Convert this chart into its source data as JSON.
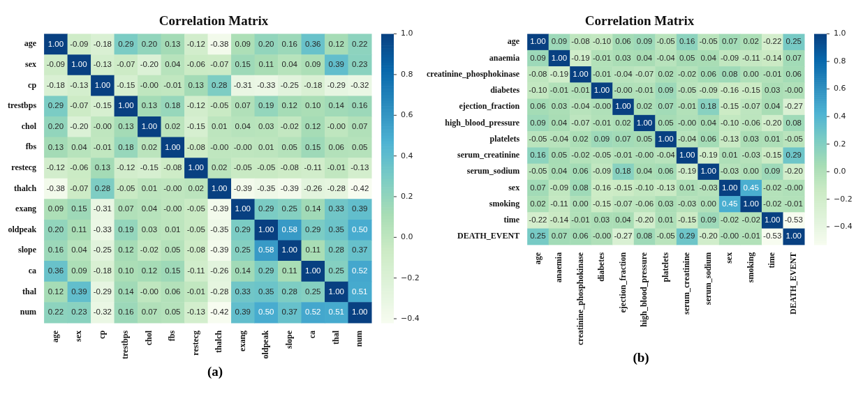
{
  "chart_data": [
    {
      "type": "heatmap",
      "title": "Correlation Matrix",
      "annotations": [
        "(a)"
      ],
      "categories": [
        "age",
        "sex",
        "cp",
        "trestbps",
        "chol",
        "fbs",
        "restecg",
        "thalch",
        "exang",
        "oldpeak",
        "slope",
        "ca",
        "thal",
        "num"
      ],
      "y_categories": [
        "age",
        "sex",
        "cp",
        "trestbps",
        "chol",
        "fbs",
        "restecg",
        "thalch",
        "exang",
        "oldpeak",
        "slope",
        "ca",
        "thal",
        "num"
      ],
      "cells": [
        [
          1.0,
          -0.09,
          -0.18,
          0.29,
          0.2,
          0.13,
          -0.12,
          -0.38,
          0.09,
          0.2,
          0.16,
          0.36,
          0.12,
          0.22
        ],
        [
          -0.09,
          1.0,
          -0.13,
          -0.07,
          -0.2,
          0.04,
          -0.06,
          -0.07,
          0.15,
          0.11,
          0.04,
          0.09,
          0.39,
          0.23
        ],
        [
          -0.18,
          -0.13,
          1.0,
          -0.15,
          0,
          -0.01,
          0.13,
          0.28,
          -0.31,
          -0.33,
          -0.25,
          -0.18,
          -0.29,
          -0.32
        ],
        [
          0.29,
          -0.07,
          -0.15,
          1.0,
          0.13,
          0.18,
          -0.12,
          -0.05,
          0.07,
          0.19,
          0.12,
          0.1,
          0.14,
          0.16
        ],
        [
          0.2,
          -0.2,
          0,
          0.13,
          1.0,
          0.02,
          -0.15,
          0.01,
          0.04,
          0.03,
          -0.02,
          0.12,
          0,
          0.07
        ],
        [
          0.13,
          0.04,
          -0.01,
          0.18,
          0.02,
          1.0,
          -0.08,
          0,
          0,
          0.01,
          0.05,
          0.15,
          0.06,
          0.05
        ],
        [
          -0.12,
          -0.06,
          0.13,
          -0.12,
          -0.15,
          -0.08,
          1.0,
          0.02,
          -0.05,
          -0.05,
          -0.08,
          -0.11,
          -0.01,
          -0.13
        ],
        [
          -0.38,
          -0.07,
          0.28,
          -0.05,
          0.01,
          0,
          0.02,
          1.0,
          -0.39,
          -0.35,
          -0.39,
          -0.26,
          -0.28,
          -0.42
        ],
        [
          0.09,
          0.15,
          -0.31,
          0.07,
          0.04,
          0,
          -0.05,
          -0.39,
          1.0,
          0.29,
          0.25,
          0.14,
          0.33,
          0.39
        ],
        [
          0.2,
          0.11,
          -0.33,
          0.19,
          0.03,
          0.01,
          -0.05,
          -0.35,
          0.29,
          1.0,
          0.58,
          0.29,
          0.35,
          0.5
        ],
        [
          0.16,
          0.04,
          -0.25,
          0.12,
          -0.02,
          0.05,
          -0.08,
          -0.39,
          0.25,
          0.58,
          1.0,
          0.11,
          0.28,
          0.37
        ],
        [
          0.36,
          0.09,
          -0.18,
          0.1,
          0.12,
          0.15,
          -0.11,
          -0.26,
          0.14,
          0.29,
          0.11,
          1.0,
          0.25,
          0.52
        ],
        [
          0.12,
          0.39,
          -0.29,
          0.14,
          0,
          0.06,
          -0.01,
          -0.28,
          0.33,
          0.35,
          0.28,
          0.25,
          1.0,
          0.51
        ],
        [
          0.22,
          0.23,
          -0.32,
          0.16,
          0.07,
          0.05,
          -0.13,
          -0.42,
          0.39,
          0.5,
          0.37,
          0.52,
          0.51,
          1.0
        ]
      ],
      "cell_labels": [
        [
          "1.00",
          "-0.09",
          "-0.18",
          "0.29",
          "0.20",
          "0.13",
          "-0.12",
          "-0.38",
          "0.09",
          "0.20",
          "0.16",
          "0.36",
          "0.12",
          "0.22"
        ],
        [
          "-0.09",
          "1.00",
          "-0.13",
          "-0.07",
          "-0.20",
          "0.04",
          "-0.06",
          "-0.07",
          "0.15",
          "0.11",
          "0.04",
          "0.09",
          "0.39",
          "0.23"
        ],
        [
          "-0.18",
          "-0.13",
          "1.00",
          "-0.15",
          "-0.00",
          "-0.01",
          "0.13",
          "0.28",
          "-0.31",
          "-0.33",
          "-0.25",
          "-0.18",
          "-0.29",
          "-0.32"
        ],
        [
          "0.29",
          "-0.07",
          "-0.15",
          "1.00",
          "0.13",
          "0.18",
          "-0.12",
          "-0.05",
          "0.07",
          "0.19",
          "0.12",
          "0.10",
          "0.14",
          "0.16"
        ],
        [
          "0.20",
          "-0.20",
          "-0.00",
          "0.13",
          "1.00",
          "0.02",
          "-0.15",
          "0.01",
          "0.04",
          "0.03",
          "-0.02",
          "0.12",
          "-0.00",
          "0.07"
        ],
        [
          "0.13",
          "0.04",
          "-0.01",
          "0.18",
          "0.02",
          "1.00",
          "-0.08",
          "-0.00",
          "-0.00",
          "0.01",
          "0.05",
          "0.15",
          "0.06",
          "0.05"
        ],
        [
          "-0.12",
          "-0.06",
          "0.13",
          "-0.12",
          "-0.15",
          "-0.08",
          "1.00",
          "0.02",
          "-0.05",
          "-0.05",
          "-0.08",
          "-0.11",
          "-0.01",
          "-0.13"
        ],
        [
          "-0.38",
          "-0.07",
          "0.28",
          "-0.05",
          "0.01",
          "-0.00",
          "0.02",
          "1.00",
          "-0.39",
          "-0.35",
          "-0.39",
          "-0.26",
          "-0.28",
          "-0.42"
        ],
        [
          "0.09",
          "0.15",
          "-0.31",
          "0.07",
          "0.04",
          "-0.00",
          "-0.05",
          "-0.39",
          "1.00",
          "0.29",
          "0.25",
          "0.14",
          "0.33",
          "0.39"
        ],
        [
          "0.20",
          "0.11",
          "-0.33",
          "0.19",
          "0.03",
          "0.01",
          "-0.05",
          "-0.35",
          "0.29",
          "1.00",
          "0.58",
          "0.29",
          "0.35",
          "0.50"
        ],
        [
          "0.16",
          "0.04",
          "-0.25",
          "0.12",
          "-0.02",
          "0.05",
          "-0.08",
          "-0.39",
          "0.25",
          "0.58",
          "1.00",
          "0.11",
          "0.28",
          "0.37"
        ],
        [
          "0.36",
          "0.09",
          "-0.18",
          "0.10",
          "0.12",
          "0.15",
          "-0.11",
          "-0.26",
          "0.14",
          "0.29",
          "0.11",
          "1.00",
          "0.25",
          "0.52"
        ],
        [
          "0.12",
          "0.39",
          "-0.29",
          "0.14",
          "-0.00",
          "0.06",
          "-0.01",
          "-0.28",
          "0.33",
          "0.35",
          "0.28",
          "0.25",
          "1.00",
          "0.51"
        ],
        [
          "0.22",
          "0.23",
          "-0.32",
          "0.16",
          "0.07",
          "0.05",
          "-0.13",
          "-0.42",
          "0.39",
          "0.50",
          "0.37",
          "0.52",
          "0.51",
          "1.00"
        ]
      ],
      "clim": [
        -0.42,
        1.0
      ],
      "cticks": [
        {
          "value": -0.4,
          "label": "−0.4"
        },
        {
          "value": -0.2,
          "label": "−0.2"
        },
        {
          "value": 0,
          "label": "0.0"
        },
        {
          "value": 0.2,
          "label": "0.2"
        },
        {
          "value": 0.4,
          "label": "0.4"
        },
        {
          "value": 0.6,
          "label": "0.6"
        },
        {
          "value": 0.8,
          "label": "0.8"
        },
        {
          "value": 1,
          "label": "1.0"
        }
      ]
    },
    {
      "type": "heatmap",
      "title": "Correlation Matrix",
      "annotations": [
        "(b)"
      ],
      "categories": [
        "age",
        "anaemia",
        "creatinine_phosphokinase",
        "diabetes",
        "ejection_fraction",
        "high_blood_pressure",
        "platelets",
        "serum_creatinine",
        "serum_sodium",
        "sex",
        "smoking",
        "time",
        "DEATH_EVENT"
      ],
      "y_categories": [
        "age",
        "anaemia",
        "creatinine_phosphokinase",
        "diabetes",
        "ejection_fraction",
        "high_blood_pressure",
        "platelets",
        "serum_creatinine",
        "serum_sodium",
        "sex",
        "smoking",
        "time",
        "DEATH_EVENT"
      ],
      "cells": [
        [
          1.0,
          0.09,
          -0.08,
          -0.1,
          0.06,
          0.09,
          -0.05,
          0.16,
          -0.05,
          0.07,
          0.02,
          -0.22,
          0.25
        ],
        [
          0.09,
          1.0,
          -0.19,
          -0.01,
          0.03,
          0.04,
          -0.04,
          0.05,
          0.04,
          -0.09,
          -0.11,
          -0.14,
          0.07
        ],
        [
          -0.08,
          -0.19,
          1.0,
          -0.01,
          -0.04,
          -0.07,
          0.02,
          -0.02,
          0.06,
          0.08,
          0.0,
          -0.01,
          0.06
        ],
        [
          -0.1,
          -0.01,
          -0.01,
          1.0,
          0,
          -0.01,
          0.09,
          -0.05,
          -0.09,
          -0.16,
          -0.15,
          0.03,
          0
        ],
        [
          0.06,
          0.03,
          -0.04,
          0,
          1.0,
          0.02,
          0.07,
          -0.01,
          0.18,
          -0.15,
          -0.07,
          0.04,
          -0.27
        ],
        [
          0.09,
          0.04,
          -0.07,
          -0.01,
          0.02,
          1.0,
          0.05,
          0,
          0.04,
          -0.1,
          -0.06,
          -0.2,
          0.08
        ],
        [
          -0.05,
          -0.04,
          0.02,
          0.09,
          0.07,
          0.05,
          1.0,
          -0.04,
          0.06,
          -0.13,
          0.03,
          0.01,
          -0.05
        ],
        [
          0.16,
          0.05,
          -0.02,
          -0.05,
          -0.01,
          0,
          -0.04,
          1.0,
          -0.19,
          0.01,
          -0.03,
          -0.15,
          0.29
        ],
        [
          -0.05,
          0.04,
          0.06,
          -0.09,
          0.18,
          0.04,
          0.06,
          -0.19,
          1.0,
          -0.03,
          0.0,
          0.09,
          -0.2
        ],
        [
          0.07,
          -0.09,
          0.08,
          -0.16,
          -0.15,
          -0.1,
          -0.13,
          0.01,
          -0.03,
          1.0,
          0.45,
          -0.02,
          0
        ],
        [
          0.02,
          -0.11,
          0.0,
          -0.15,
          -0.07,
          -0.06,
          0.03,
          -0.03,
          0.0,
          0.45,
          1.0,
          -0.02,
          -0.01
        ],
        [
          -0.22,
          -0.14,
          -0.01,
          0.03,
          0.04,
          -0.2,
          0.01,
          -0.15,
          0.09,
          -0.02,
          -0.02,
          1.0,
          -0.53
        ],
        [
          0.25,
          0.07,
          0.06,
          0,
          -0.27,
          0.08,
          -0.05,
          0.29,
          -0.2,
          0,
          -0.01,
          -0.53,
          1.0
        ]
      ],
      "cell_labels": [
        [
          "1.00",
          "0.09",
          "-0.08",
          "-0.10",
          "0.06",
          "0.09",
          "-0.05",
          "0.16",
          "-0.05",
          "0.07",
          "0.02",
          "-0.22",
          "0.25"
        ],
        [
          "0.09",
          "1.00",
          "-0.19",
          "-0.01",
          "0.03",
          "0.04",
          "-0.04",
          "0.05",
          "0.04",
          "-0.09",
          "-0.11",
          "-0.14",
          "0.07"
        ],
        [
          "-0.08",
          "-0.19",
          "1.00",
          "-0.01",
          "-0.04",
          "-0.07",
          "0.02",
          "-0.02",
          "0.06",
          "0.08",
          "0.00",
          "-0.01",
          "0.06"
        ],
        [
          "-0.10",
          "-0.01",
          "-0.01",
          "1.00",
          "-0.00",
          "-0.01",
          "0.09",
          "-0.05",
          "-0.09",
          "-0.16",
          "-0.15",
          "0.03",
          "-0.00"
        ],
        [
          "0.06",
          "0.03",
          "-0.04",
          "-0.00",
          "1.00",
          "0.02",
          "0.07",
          "-0.01",
          "0.18",
          "-0.15",
          "-0.07",
          "0.04",
          "-0.27"
        ],
        [
          "0.09",
          "0.04",
          "-0.07",
          "-0.01",
          "0.02",
          "1.00",
          "0.05",
          "-0.00",
          "0.04",
          "-0.10",
          "-0.06",
          "-0.20",
          "0.08"
        ],
        [
          "-0.05",
          "-0.04",
          "0.02",
          "0.09",
          "0.07",
          "0.05",
          "1.00",
          "-0.04",
          "0.06",
          "-0.13",
          "0.03",
          "0.01",
          "-0.05"
        ],
        [
          "0.16",
          "0.05",
          "-0.02",
          "-0.05",
          "-0.01",
          "-0.00",
          "-0.04",
          "1.00",
          "-0.19",
          "0.01",
          "-0.03",
          "-0.15",
          "0.29"
        ],
        [
          "-0.05",
          "0.04",
          "0.06",
          "-0.09",
          "0.18",
          "0.04",
          "0.06",
          "-0.19",
          "1.00",
          "-0.03",
          "0.00",
          "0.09",
          "-0.20"
        ],
        [
          "0.07",
          "-0.09",
          "0.08",
          "-0.16",
          "-0.15",
          "-0.10",
          "-0.13",
          "0.01",
          "-0.03",
          "1.00",
          "0.45",
          "-0.02",
          "-0.00"
        ],
        [
          "0.02",
          "-0.11",
          "0.00",
          "-0.15",
          "-0.07",
          "-0.06",
          "0.03",
          "-0.03",
          "0.00",
          "0.45",
          "1.00",
          "-0.02",
          "-0.01"
        ],
        [
          "-0.22",
          "-0.14",
          "-0.01",
          "0.03",
          "0.04",
          "-0.20",
          "0.01",
          "-0.15",
          "0.09",
          "-0.02",
          "-0.02",
          "1.00",
          "-0.53"
        ],
        [
          "0.25",
          "0.07",
          "0.06",
          "-0.00",
          "-0.27",
          "0.08",
          "-0.05",
          "0.29",
          "-0.20",
          "-0.00",
          "-0.01",
          "-0.53",
          "1.00"
        ]
      ],
      "clim": [
        -0.53,
        1.0
      ],
      "cticks": [
        {
          "value": -0.4,
          "label": "−0.4"
        },
        {
          "value": -0.2,
          "label": "−0.2"
        },
        {
          "value": 0,
          "label": "0.0"
        },
        {
          "value": 0.2,
          "label": "0.2"
        },
        {
          "value": 0.4,
          "label": "0.4"
        },
        {
          "value": 0.6,
          "label": "0.6"
        },
        {
          "value": 0.8,
          "label": "0.8"
        },
        {
          "value": 1,
          "label": "1.0"
        }
      ]
    }
  ]
}
